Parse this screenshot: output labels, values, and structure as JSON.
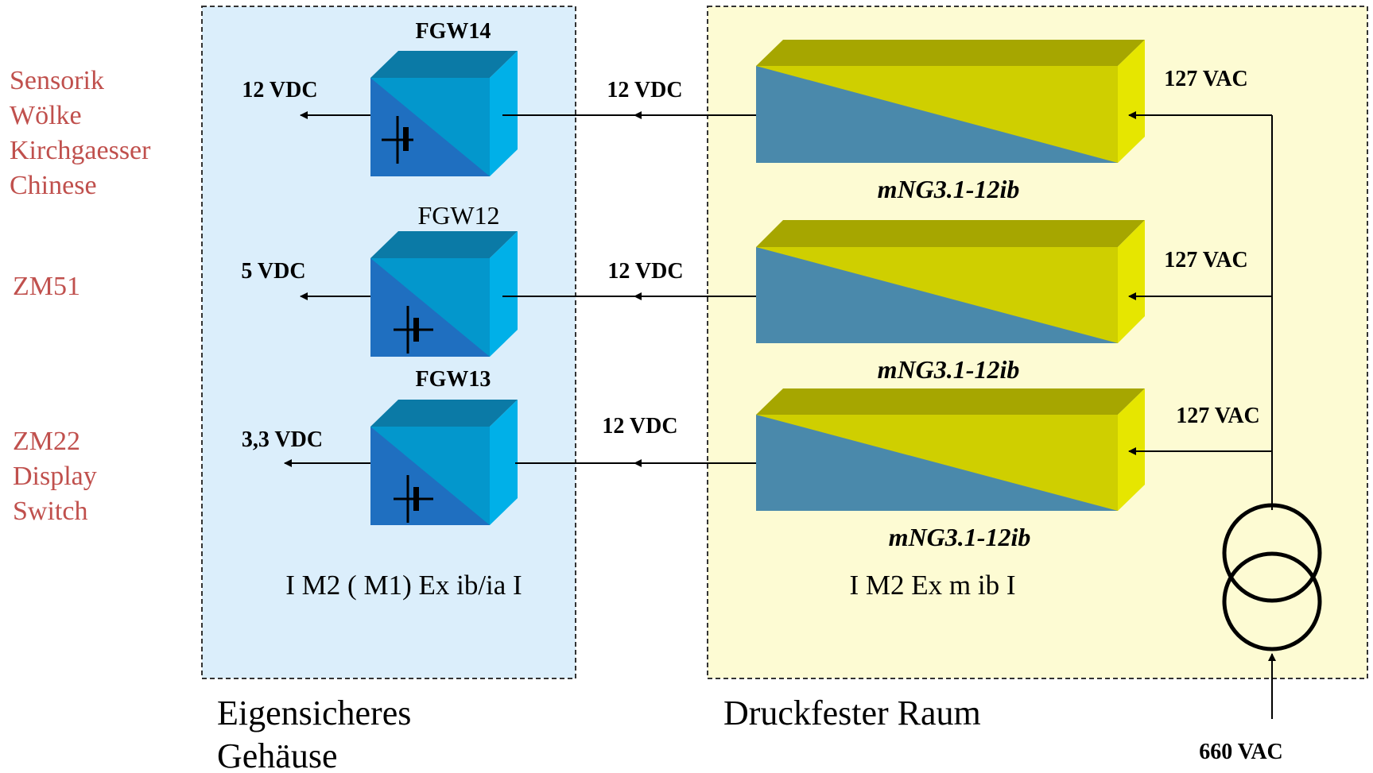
{
  "left_labels": {
    "group1": [
      "Sensorik",
      "Wölke",
      "Kirchgaesser",
      "Chinese"
    ],
    "group2": "ZM51",
    "group3": [
      "ZM22",
      "Display",
      "Switch"
    ]
  },
  "enclosure_left": {
    "title_line1": "Eigensicheres",
    "title_line2": "Gehäuse",
    "marking": "I M2 ( M1) Ex ib/ia I",
    "converters": [
      {
        "name": "FGW14",
        "output": "12 VDC"
      },
      {
        "name": "FGW12",
        "output": "5 VDC"
      },
      {
        "name": "FGW13",
        "output": "3,3 VDC"
      }
    ]
  },
  "enclosure_right": {
    "title": "Druckfester Raum",
    "marking": "I M2 Ex m ib I",
    "supplies": [
      {
        "name": "mNG3.1-12ib",
        "input": "127 VAC",
        "output": "12 VDC"
      },
      {
        "name": "mNG3.1-12ib",
        "input": "127 VAC",
        "output": "12 VDC"
      },
      {
        "name": "mNG3.1-12ib",
        "input": "127 VAC",
        "output": "12 VDC"
      }
    ]
  },
  "mains_input": "660 VAC",
  "colors": {
    "left_box_fill": "#dbeefb",
    "right_box_fill": "#fdfbd3",
    "converter_front": "#1f6fc0",
    "converter_top": "#0b7aa6",
    "converter_side": "#00b0e8",
    "supply_top": "#a6a600",
    "supply_front_yellow": "#cfcf00",
    "supply_front_blue": "#4a89ab",
    "supply_side": "#e6e600",
    "label_red": "#c0504d"
  }
}
